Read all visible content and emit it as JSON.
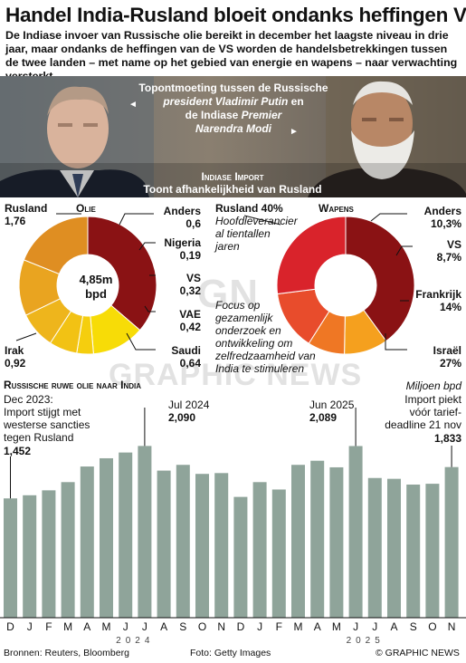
{
  "header": {
    "title": "Handel India-Rusland bloeit ondanks heffingen VS",
    "subtitle": "De Indiase invoer van Russische olie bereikt in december het laagste niveau in drie jaar, maar ondanks de heffingen van de VS worden de handelsbetrekkingen tussen de twee landen – met name op het gebied van energie en wapens – naar verwachting versterkt"
  },
  "photo": {
    "caption_line1": "Topontmoeting tussen de Russische",
    "caption_line2_italic": "president Vladimir Putin",
    "caption_line2_tail": " en",
    "caption_line3_head": "de Indiase ",
    "caption_line3_italic": "Premier",
    "caption_line4_italic": "Narendra Modi",
    "arrow_left": "◄",
    "arrow_right": "►",
    "section_title": "Indiase Import",
    "section_subtitle": "Toont afhankelijkheid van Rusland"
  },
  "oil": {
    "title": "Olie",
    "center_value": "4,85m",
    "center_unit": "bpd",
    "leader_color": "#111111"
  },
  "weapons": {
    "title": "Wapens",
    "note_head": "Rusland 40%",
    "note_sub": [
      "Hoofdleverancier",
      "al tientallen",
      "jaren"
    ],
    "focus": [
      "Focus op",
      "gezamenlijk",
      "onderzoek en",
      "ontwikkeling om",
      "zelfredzaamheid van",
      "India te stimuleren"
    ]
  },
  "crude": {
    "title": "Russische ruwe olie naar India",
    "unit": "Miljoen bpd",
    "ann_dec_label": [
      "Dec 2023:",
      "Import stijgt met",
      "westerse sancties",
      "tegen Rusland"
    ],
    "ann_dec_value": "1,452",
    "ann_jul_label": "Jul 2024",
    "ann_jul_value": "2,090",
    "ann_jun_label": "Jun 2025",
    "ann_jun_value": "2,089",
    "ann_nov_label": [
      "Import piekt",
      "vóór tarief-",
      "deadline 21 nov"
    ],
    "ann_nov_value": "1,833",
    "year1": "2024",
    "year2": "2025"
  },
  "footer": {
    "sources": "Bronnen: Reuters, Bloomberg",
    "photo": "Foto: Getty Images",
    "copyright": "© GRAPHIC NEWS"
  },
  "watermark": {
    "line1": "GN",
    "line2": "GRAPHIC NEWS"
  },
  "chart_data": [
    {
      "type": "pie",
      "title": "Olie",
      "unit": "m bpd",
      "total": 4.85,
      "slices": [
        {
          "name": "Rusland",
          "value": 1.76,
          "label": "1,76",
          "color": "#8a1214"
        },
        {
          "name": "Anders",
          "value": 0.6,
          "label": "0,6",
          "color": "#f7dc07"
        },
        {
          "name": "Nigeria",
          "value": 0.19,
          "label": "0,19",
          "color": "#f5ce0e"
        },
        {
          "name": "VS",
          "value": 0.32,
          "label": "0,32",
          "color": "#f2c214"
        },
        {
          "name": "VAE",
          "value": 0.42,
          "label": "0,42",
          "color": "#eeb51c"
        },
        {
          "name": "Saudi",
          "value": 0.64,
          "label": "0,64",
          "color": "#e9a420"
        },
        {
          "name": "Irak",
          "value": 0.92,
          "label": "0,92",
          "color": "#df8e22"
        }
      ]
    },
    {
      "type": "pie",
      "title": "Wapens",
      "unit": "%",
      "slices": [
        {
          "name": "Rusland",
          "value": 40,
          "label": "40%",
          "color": "#8a1214"
        },
        {
          "name": "Anders",
          "value": 10.3,
          "label": "10,3%",
          "color": "#f5a01e"
        },
        {
          "name": "VS",
          "value": 8.7,
          "label": "8,7%",
          "color": "#ef7724"
        },
        {
          "name": "Frankrijk",
          "value": 14,
          "label": "14%",
          "color": "#e84c2c"
        },
        {
          "name": "Israël",
          "value": 27,
          "label": "27%",
          "color": "#d9232b"
        }
      ]
    },
    {
      "type": "bar",
      "title": "Russische ruwe olie naar India",
      "ylabel": "Miljoen bpd",
      "categories": [
        "D",
        "J",
        "F",
        "M",
        "A",
        "M",
        "J",
        "J",
        "A",
        "S",
        "O",
        "N",
        "D",
        "J",
        "F",
        "M",
        "A",
        "M",
        "J",
        "J",
        "A",
        "S",
        "O",
        "N"
      ],
      "year_labels": [
        "2024",
        "2025"
      ],
      "values": [
        1.452,
        1.49,
        1.55,
        1.65,
        1.84,
        1.94,
        2.01,
        2.09,
        1.79,
        1.86,
        1.75,
        1.76,
        1.47,
        1.65,
        1.56,
        1.86,
        1.91,
        1.83,
        2.089,
        1.7,
        1.69,
        1.62,
        1.63,
        1.833
      ],
      "ylim": [
        0,
        2.5
      ],
      "bar_color": "#8fa49a"
    }
  ]
}
